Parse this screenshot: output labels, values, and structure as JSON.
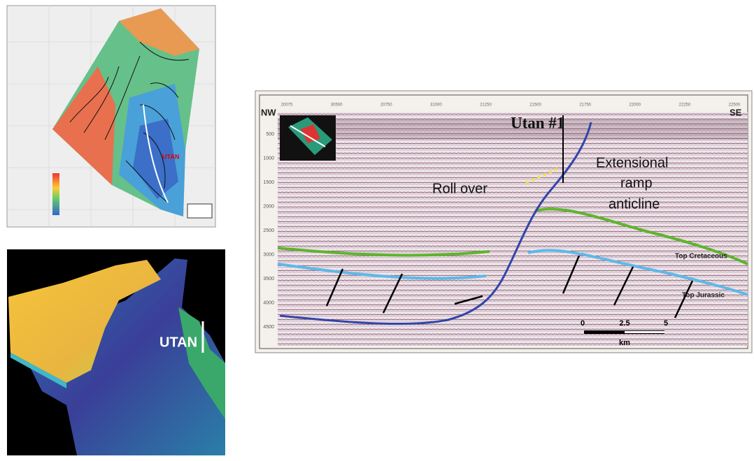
{
  "map": {
    "well_label": "UTAN"
  },
  "view_3d": {
    "well_label": "UTAN"
  },
  "section": {
    "left_label": "NW",
    "right_label": "SE",
    "well": "Utan #1",
    "top_ticks": [
      "20075",
      "30500",
      "20750",
      "31000",
      "21250",
      "21500",
      "21750",
      "22000",
      "22250",
      "22500"
    ],
    "depth_ticks": [
      "500",
      "1000",
      "1500",
      "2000",
      "2500",
      "3000",
      "3500",
      "4000",
      "4500"
    ],
    "roll_over": "Roll over",
    "anticline": [
      "Extensional",
      "ramp",
      "anticline"
    ],
    "top_cretaceous": "Top Cretaceous",
    "top_jurassic": "Top Jurassic",
    "scale": {
      "ticks": [
        "0",
        "2.5",
        "5"
      ],
      "unit": "km"
    }
  }
}
